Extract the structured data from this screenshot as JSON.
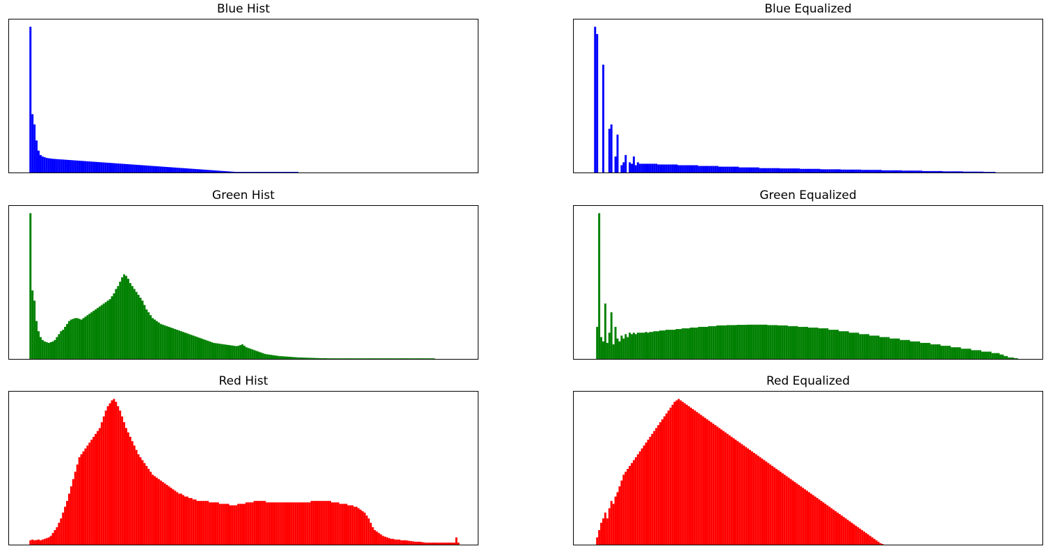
{
  "figure": {
    "background": "#ffffff"
  },
  "chart_data": [
    {
      "id": "blue-hist",
      "type": "bar",
      "title": "Blue Hist",
      "color": "#0000ff",
      "xlabel": "",
      "ylabel": "",
      "xlim": [
        -10,
        220
      ],
      "ylim": [
        0,
        1.05
      ],
      "grid": false,
      "x_start": 0,
      "values": [
        1.0,
        0.4,
        0.33,
        0.22,
        0.15,
        0.12,
        0.11,
        0.105,
        0.1,
        0.098,
        0.096,
        0.094,
        0.093,
        0.092,
        0.091,
        0.09,
        0.089,
        0.088,
        0.087,
        0.086,
        0.085,
        0.084,
        0.083,
        0.082,
        0.081,
        0.08,
        0.079,
        0.078,
        0.077,
        0.076,
        0.075,
        0.074,
        0.073,
        0.072,
        0.071,
        0.07,
        0.069,
        0.068,
        0.067,
        0.066,
        0.065,
        0.064,
        0.063,
        0.062,
        0.061,
        0.06,
        0.059,
        0.058,
        0.057,
        0.056,
        0.055,
        0.054,
        0.053,
        0.052,
        0.051,
        0.05,
        0.049,
        0.048,
        0.047,
        0.046,
        0.045,
        0.044,
        0.043,
        0.042,
        0.041,
        0.04,
        0.039,
        0.038,
        0.037,
        0.036,
        0.035,
        0.034,
        0.033,
        0.032,
        0.031,
        0.03,
        0.029,
        0.028,
        0.027,
        0.026,
        0.025,
        0.024,
        0.023,
        0.022,
        0.021,
        0.02,
        0.019,
        0.018,
        0.017,
        0.016,
        0.015,
        0.014,
        0.013,
        0.012,
        0.011,
        0.01,
        0.009,
        0.008,
        0.007,
        0.006,
        0.005,
        0.004,
        0.004,
        0.004,
        0.004,
        0.004,
        0.004,
        0.004,
        0.004,
        0.004,
        0.004,
        0.004,
        0.004,
        0.004,
        0.004,
        0.004,
        0.004,
        0.004,
        0.004,
        0.004,
        0.004,
        0.004,
        0.004,
        0.004,
        0.004,
        0.004,
        0.004,
        0.004,
        0.004,
        0.004,
        0.004,
        0.004
      ]
    },
    {
      "id": "blue-equalized",
      "type": "bar",
      "title": "Blue Equalized",
      "color": "#0000ff",
      "xlabel": "",
      "ylabel": "",
      "xlim": [
        -10,
        220
      ],
      "ylim": [
        0,
        1.05
      ],
      "grid": false,
      "x_start": 0,
      "values": [
        1.0,
        0.95,
        0.0,
        0.0,
        0.74,
        0.0,
        0.0,
        0.3,
        0.33,
        0.0,
        0.11,
        0.26,
        0.0,
        0.05,
        0.07,
        0.12,
        0.0,
        0.07,
        0.06,
        0.11,
        0.05,
        0.07,
        0.06,
        0.06,
        0.06,
        0.06,
        0.06,
        0.06,
        0.06,
        0.06,
        0.06,
        0.055,
        0.055,
        0.055,
        0.055,
        0.055,
        0.055,
        0.055,
        0.055,
        0.055,
        0.055,
        0.05,
        0.05,
        0.05,
        0.05,
        0.05,
        0.05,
        0.05,
        0.05,
        0.05,
        0.05,
        0.045,
        0.045,
        0.045,
        0.045,
        0.045,
        0.045,
        0.045,
        0.045,
        0.045,
        0.045,
        0.04,
        0.04,
        0.04,
        0.04,
        0.04,
        0.04,
        0.04,
        0.04,
        0.04,
        0.04,
        0.035,
        0.035,
        0.035,
        0.035,
        0.035,
        0.035,
        0.035,
        0.035,
        0.035,
        0.035,
        0.03,
        0.03,
        0.03,
        0.03,
        0.03,
        0.03,
        0.03,
        0.03,
        0.03,
        0.03,
        0.028,
        0.028,
        0.028,
        0.028,
        0.028,
        0.028,
        0.028,
        0.028,
        0.028,
        0.028,
        0.025,
        0.025,
        0.025,
        0.025,
        0.025,
        0.025,
        0.025,
        0.025,
        0.025,
        0.025,
        0.022,
        0.022,
        0.022,
        0.022,
        0.022,
        0.022,
        0.022,
        0.022,
        0.022,
        0.022,
        0.02,
        0.02,
        0.02,
        0.02,
        0.02,
        0.02,
        0.02,
        0.02,
        0.02,
        0.02,
        0.018,
        0.018,
        0.018,
        0.018,
        0.018,
        0.018,
        0.018,
        0.018,
        0.018,
        0.018,
        0.015,
        0.015,
        0.015,
        0.015,
        0.015,
        0.015,
        0.015,
        0.015,
        0.015,
        0.015,
        0.013,
        0.013,
        0.013,
        0.013,
        0.013,
        0.013,
        0.013,
        0.013,
        0.013,
        0.013,
        0.01,
        0.01,
        0.01,
        0.01,
        0.01,
        0.01,
        0.01,
        0.01,
        0.01,
        0.01,
        0.008,
        0.008,
        0.008,
        0.008,
        0.008,
        0.008,
        0.008,
        0.008,
        0.008,
        0.008,
        0.006,
        0.006,
        0.006,
        0.006,
        0.006,
        0.006,
        0.006,
        0.006,
        0.006,
        0.006,
        0.004,
        0.004,
        0.004,
        0.004,
        0.004,
        0.004
      ]
    },
    {
      "id": "green-hist",
      "type": "bar",
      "title": "Green Hist",
      "color": "#008000",
      "xlabel": "",
      "ylabel": "",
      "xlim": [
        -10,
        220
      ],
      "ylim": [
        0,
        1.05
      ],
      "grid": false,
      "x_start": 0,
      "values": [
        1.0,
        0.47,
        0.4,
        0.26,
        0.19,
        0.15,
        0.13,
        0.12,
        0.115,
        0.11,
        0.115,
        0.12,
        0.13,
        0.15,
        0.17,
        0.19,
        0.2,
        0.22,
        0.24,
        0.26,
        0.27,
        0.275,
        0.28,
        0.28,
        0.275,
        0.27,
        0.28,
        0.29,
        0.3,
        0.31,
        0.32,
        0.33,
        0.34,
        0.35,
        0.36,
        0.37,
        0.38,
        0.39,
        0.4,
        0.41,
        0.43,
        0.45,
        0.48,
        0.5,
        0.53,
        0.56,
        0.58,
        0.57,
        0.55,
        0.52,
        0.5,
        0.48,
        0.46,
        0.44,
        0.42,
        0.4,
        0.37,
        0.34,
        0.32,
        0.3,
        0.28,
        0.27,
        0.26,
        0.25,
        0.24,
        0.235,
        0.23,
        0.225,
        0.22,
        0.215,
        0.21,
        0.205,
        0.2,
        0.195,
        0.19,
        0.185,
        0.18,
        0.175,
        0.17,
        0.165,
        0.16,
        0.155,
        0.15,
        0.145,
        0.14,
        0.135,
        0.13,
        0.125,
        0.12,
        0.115,
        0.11,
        0.108,
        0.106,
        0.104,
        0.102,
        0.1,
        0.098,
        0.096,
        0.094,
        0.092,
        0.09,
        0.088,
        0.09,
        0.095,
        0.1,
        0.09,
        0.08,
        0.075,
        0.07,
        0.065,
        0.06,
        0.055,
        0.05,
        0.045,
        0.04,
        0.035,
        0.032,
        0.03,
        0.028,
        0.026,
        0.024,
        0.022,
        0.02,
        0.019,
        0.018,
        0.017,
        0.016,
        0.015,
        0.014,
        0.013,
        0.012,
        0.011,
        0.01,
        0.01,
        0.009,
        0.009,
        0.008,
        0.008,
        0.007,
        0.007,
        0.006,
        0.006,
        0.005,
        0.005,
        0.005,
        0.005,
        0.004,
        0.004,
        0.004,
        0.004,
        0.004,
        0.004,
        0.004,
        0.004,
        0.004,
        0.004,
        0.004,
        0.004,
        0.004,
        0.004,
        0.004,
        0.004,
        0.004,
        0.004,
        0.004,
        0.004,
        0.004,
        0.004,
        0.004,
        0.004,
        0.004,
        0.004,
        0.004,
        0.004,
        0.004,
        0.004,
        0.004,
        0.004,
        0.004,
        0.004,
        0.004,
        0.004,
        0.004,
        0.004,
        0.004,
        0.004,
        0.004,
        0.004,
        0.004,
        0.004,
        0.004,
        0.004,
        0.004,
        0.004,
        0.004,
        0.004,
        0.004,
        0.004,
        0.004
      ]
    },
    {
      "id": "green-equalized",
      "type": "bar",
      "title": "Green Equalized",
      "color": "#008000",
      "xlabel": "",
      "ylabel": "",
      "xlim": [
        -10,
        220
      ],
      "ylim": [
        0,
        1.05
      ],
      "grid": false,
      "x_start": 0,
      "values": [
        0.0,
        0.22,
        1.0,
        0.15,
        0.12,
        0.38,
        0.11,
        0.18,
        0.32,
        0.1,
        0.22,
        0.14,
        0.12,
        0.16,
        0.14,
        0.17,
        0.15,
        0.18,
        0.17,
        0.18,
        0.17,
        0.18,
        0.18,
        0.18,
        0.18,
        0.185,
        0.18,
        0.185,
        0.185,
        0.19,
        0.19,
        0.19,
        0.195,
        0.195,
        0.195,
        0.2,
        0.2,
        0.2,
        0.2,
        0.2,
        0.205,
        0.205,
        0.205,
        0.21,
        0.21,
        0.21,
        0.21,
        0.215,
        0.215,
        0.215,
        0.215,
        0.22,
        0.22,
        0.22,
        0.22,
        0.22,
        0.225,
        0.225,
        0.225,
        0.225,
        0.23,
        0.23,
        0.23,
        0.23,
        0.23,
        0.232,
        0.232,
        0.232,
        0.232,
        0.232,
        0.234,
        0.234,
        0.234,
        0.234,
        0.234,
        0.235,
        0.235,
        0.235,
        0.235,
        0.235,
        0.235,
        0.235,
        0.235,
        0.235,
        0.235,
        0.232,
        0.232,
        0.232,
        0.232,
        0.232,
        0.23,
        0.23,
        0.23,
        0.23,
        0.23,
        0.225,
        0.225,
        0.225,
        0.225,
        0.225,
        0.22,
        0.22,
        0.22,
        0.22,
        0.22,
        0.215,
        0.215,
        0.215,
        0.215,
        0.215,
        0.21,
        0.21,
        0.21,
        0.21,
        0.21,
        0.2,
        0.2,
        0.2,
        0.2,
        0.2,
        0.19,
        0.19,
        0.19,
        0.19,
        0.19,
        0.18,
        0.18,
        0.18,
        0.18,
        0.18,
        0.17,
        0.17,
        0.17,
        0.17,
        0.17,
        0.16,
        0.16,
        0.16,
        0.16,
        0.16,
        0.15,
        0.15,
        0.15,
        0.15,
        0.15,
        0.14,
        0.14,
        0.14,
        0.14,
        0.14,
        0.13,
        0.13,
        0.13,
        0.13,
        0.13,
        0.12,
        0.12,
        0.12,
        0.12,
        0.12,
        0.11,
        0.11,
        0.11,
        0.11,
        0.11,
        0.1,
        0.1,
        0.1,
        0.1,
        0.1,
        0.09,
        0.09,
        0.09,
        0.09,
        0.09,
        0.08,
        0.08,
        0.08,
        0.08,
        0.08,
        0.07,
        0.07,
        0.07,
        0.07,
        0.07,
        0.06,
        0.06,
        0.06,
        0.06,
        0.06,
        0.05,
        0.05,
        0.05,
        0.05,
        0.05,
        0.04,
        0.04,
        0.04,
        0.04,
        0.03,
        0.03,
        0.02,
        0.02,
        0.01,
        0.01,
        0.01,
        0.005,
        0.005
      ]
    },
    {
      "id": "red-hist",
      "type": "bar",
      "title": "Red Hist",
      "color": "#ff0000",
      "xlabel": "",
      "ylabel": "",
      "xlim": [
        -10,
        220
      ],
      "ylim": [
        0,
        1.05
      ],
      "grid": false,
      "x_start": 0,
      "values": [
        0.03,
        0.035,
        0.03,
        0.032,
        0.035,
        0.03,
        0.035,
        0.04,
        0.045,
        0.05,
        0.06,
        0.08,
        0.1,
        0.12,
        0.15,
        0.18,
        0.22,
        0.26,
        0.3,
        0.35,
        0.4,
        0.45,
        0.5,
        0.55,
        0.6,
        0.62,
        0.64,
        0.66,
        0.68,
        0.7,
        0.72,
        0.74,
        0.76,
        0.78,
        0.8,
        0.84,
        0.88,
        0.92,
        0.95,
        0.97,
        0.99,
        1.0,
        0.98,
        0.95,
        0.92,
        0.88,
        0.84,
        0.8,
        0.77,
        0.74,
        0.71,
        0.68,
        0.65,
        0.62,
        0.6,
        0.58,
        0.56,
        0.54,
        0.52,
        0.5,
        0.48,
        0.47,
        0.46,
        0.45,
        0.44,
        0.43,
        0.42,
        0.41,
        0.4,
        0.39,
        0.38,
        0.37,
        0.36,
        0.35,
        0.35,
        0.34,
        0.33,
        0.33,
        0.32,
        0.32,
        0.31,
        0.31,
        0.3,
        0.3,
        0.3,
        0.3,
        0.3,
        0.3,
        0.29,
        0.29,
        0.29,
        0.29,
        0.29,
        0.28,
        0.28,
        0.28,
        0.28,
        0.28,
        0.27,
        0.27,
        0.27,
        0.27,
        0.28,
        0.28,
        0.28,
        0.28,
        0.29,
        0.29,
        0.29,
        0.29,
        0.3,
        0.3,
        0.3,
        0.3,
        0.3,
        0.3,
        0.29,
        0.29,
        0.29,
        0.29,
        0.29,
        0.29,
        0.29,
        0.29,
        0.29,
        0.29,
        0.29,
        0.29,
        0.29,
        0.29,
        0.29,
        0.29,
        0.29,
        0.29,
        0.29,
        0.29,
        0.29,
        0.29,
        0.3,
        0.3,
        0.3,
        0.3,
        0.3,
        0.3,
        0.3,
        0.3,
        0.3,
        0.3,
        0.29,
        0.29,
        0.29,
        0.29,
        0.28,
        0.28,
        0.28,
        0.28,
        0.27,
        0.27,
        0.27,
        0.26,
        0.26,
        0.25,
        0.24,
        0.23,
        0.22,
        0.2,
        0.18,
        0.15,
        0.12,
        0.1,
        0.09,
        0.08,
        0.07,
        0.06,
        0.055,
        0.05,
        0.045,
        0.04,
        0.04,
        0.035,
        0.035,
        0.035,
        0.03,
        0.03,
        0.03,
        0.028,
        0.026,
        0.024,
        0.022,
        0.02,
        0.02,
        0.02,
        0.018,
        0.016,
        0.014,
        0.014,
        0.014,
        0.014,
        0.014,
        0.014,
        0.014,
        0.014,
        0.014,
        0.014,
        0.014,
        0.014,
        0.014,
        0.014,
        0.014,
        0.05,
        0.014
      ]
    },
    {
      "id": "red-equalized",
      "type": "bar",
      "title": "Red Equalized",
      "color": "#ff0000",
      "xlabel": "",
      "ylabel": "",
      "xlim": [
        -10,
        220
      ],
      "ylim": [
        0,
        1.05
      ],
      "grid": false,
      "x_start": 0,
      "values": [
        0.0,
        0.05,
        0.1,
        0.15,
        0.18,
        0.22,
        0.18,
        0.25,
        0.3,
        0.28,
        0.33,
        0.36,
        0.4,
        0.44,
        0.48,
        0.5,
        0.52,
        0.54,
        0.56,
        0.58,
        0.6,
        0.62,
        0.64,
        0.66,
        0.68,
        0.7,
        0.72,
        0.74,
        0.76,
        0.78,
        0.8,
        0.82,
        0.84,
        0.86,
        0.88,
        0.9,
        0.92,
        0.94,
        0.96,
        0.98,
        0.99,
        1.0,
        0.99,
        0.98,
        0.97,
        0.96,
        0.95,
        0.94,
        0.93,
        0.92,
        0.91,
        0.9,
        0.89,
        0.88,
        0.87,
        0.86,
        0.85,
        0.84,
        0.83,
        0.82,
        0.81,
        0.8,
        0.79,
        0.78,
        0.77,
        0.76,
        0.75,
        0.74,
        0.73,
        0.72,
        0.71,
        0.7,
        0.69,
        0.68,
        0.67,
        0.66,
        0.65,
        0.64,
        0.63,
        0.62,
        0.61,
        0.6,
        0.59,
        0.58,
        0.57,
        0.56,
        0.55,
        0.54,
        0.53,
        0.52,
        0.51,
        0.5,
        0.49,
        0.48,
        0.47,
        0.46,
        0.45,
        0.44,
        0.43,
        0.42,
        0.41,
        0.4,
        0.39,
        0.38,
        0.37,
        0.36,
        0.35,
        0.34,
        0.33,
        0.32,
        0.31,
        0.3,
        0.29,
        0.28,
        0.27,
        0.26,
        0.25,
        0.24,
        0.23,
        0.22,
        0.21,
        0.2,
        0.19,
        0.18,
        0.17,
        0.16,
        0.15,
        0.14,
        0.13,
        0.12,
        0.11,
        0.1,
        0.09,
        0.08,
        0.07,
        0.06,
        0.05,
        0.04,
        0.03,
        0.02,
        0.01,
        0.005
      ]
    }
  ]
}
